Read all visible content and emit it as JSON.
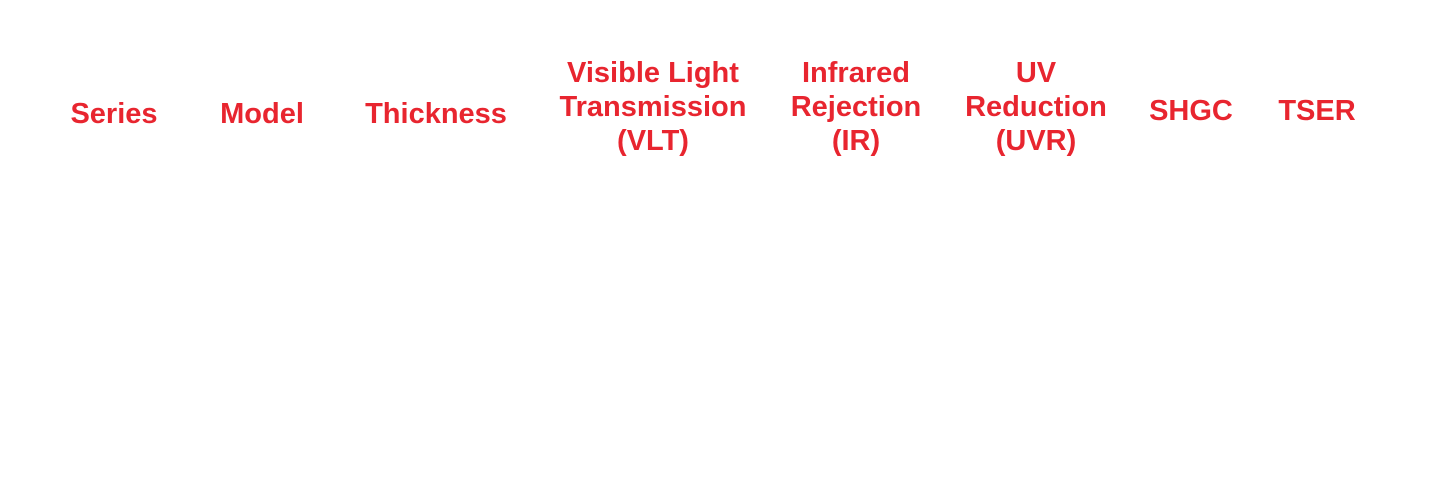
{
  "theme": {
    "header_color": "#e8252f",
    "background": "#ffffff"
  },
  "table": {
    "headers": [
      [
        "Series"
      ],
      [
        "Model"
      ],
      [
        "Thickness"
      ],
      [
        "Visible Light",
        "Transmission",
        "(VLT)"
      ],
      [
        "Infrared",
        "Rejection",
        "(IR)"
      ],
      [
        "UV",
        "Reduction",
        "(UVR)"
      ],
      [
        "SHGC"
      ],
      [
        "TSER"
      ]
    ]
  }
}
